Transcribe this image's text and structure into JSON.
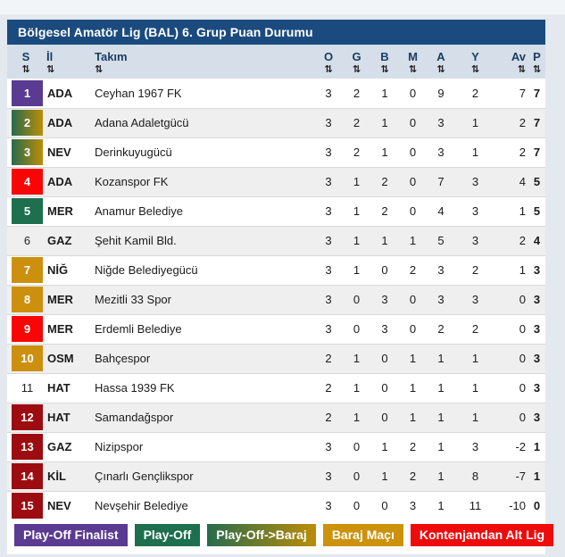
{
  "title": "Bölgesel Amatör Lig (BAL) 6. Grup Puan Durumu",
  "sort_icon": "⇅",
  "columns": [
    {
      "key": "s",
      "label": "S"
    },
    {
      "key": "il",
      "label": "İl"
    },
    {
      "key": "tk",
      "label": "Takım"
    },
    {
      "key": "o",
      "label": "O"
    },
    {
      "key": "g",
      "label": "G"
    },
    {
      "key": "b",
      "label": "B"
    },
    {
      "key": "m",
      "label": "M"
    },
    {
      "key": "a",
      "label": "A"
    },
    {
      "key": "y",
      "label": "Y"
    },
    {
      "key": "av",
      "label": "Av"
    },
    {
      "key": "p",
      "label": "P"
    }
  ],
  "rows": [
    {
      "rank": 1,
      "badge": "purple",
      "il": "ADA",
      "team": "Ceyhan 1967 FK",
      "o": 3,
      "g": 2,
      "b": 1,
      "m": 0,
      "a": 9,
      "y": 2,
      "av": 7,
      "p": 7
    },
    {
      "rank": 2,
      "badge": "grad",
      "il": "ADA",
      "team": "Adana Adaletgücü",
      "o": 3,
      "g": 2,
      "b": 1,
      "m": 0,
      "a": 3,
      "y": 1,
      "av": 2,
      "p": 7
    },
    {
      "rank": 3,
      "badge": "grad",
      "il": "NEV",
      "team": "Derinkuyugücü",
      "o": 3,
      "g": 2,
      "b": 1,
      "m": 0,
      "a": 3,
      "y": 1,
      "av": 2,
      "p": 7
    },
    {
      "rank": 4,
      "badge": "red",
      "il": "ADA",
      "team": "Kozanspor FK",
      "o": 3,
      "g": 1,
      "b": 2,
      "m": 0,
      "a": 7,
      "y": 3,
      "av": 4,
      "p": 5
    },
    {
      "rank": 5,
      "badge": "green",
      "il": "MER",
      "team": "Anamur Belediye",
      "o": 3,
      "g": 1,
      "b": 2,
      "m": 0,
      "a": 4,
      "y": 3,
      "av": 1,
      "p": 5
    },
    {
      "rank": 6,
      "badge": "none",
      "il": "GAZ",
      "team": "Şehit Kamil Bld.",
      "o": 3,
      "g": 1,
      "b": 1,
      "m": 1,
      "a": 5,
      "y": 3,
      "av": 2,
      "p": 4
    },
    {
      "rank": 7,
      "badge": "gold",
      "il": "NİĞ",
      "team": "Niğde Belediyegücü",
      "o": 3,
      "g": 1,
      "b": 0,
      "m": 2,
      "a": 3,
      "y": 2,
      "av": 1,
      "p": 3
    },
    {
      "rank": 8,
      "badge": "gold",
      "il": "MER",
      "team": "Mezitli 33 Spor",
      "o": 3,
      "g": 0,
      "b": 3,
      "m": 0,
      "a": 3,
      "y": 3,
      "av": 0,
      "p": 3
    },
    {
      "rank": 9,
      "badge": "red",
      "il": "MER",
      "team": "Erdemli Belediye",
      "o": 3,
      "g": 0,
      "b": 3,
      "m": 0,
      "a": 2,
      "y": 2,
      "av": 0,
      "p": 3
    },
    {
      "rank": 10,
      "badge": "gold",
      "il": "OSM",
      "team": "Bahçespor",
      "o": 2,
      "g": 1,
      "b": 0,
      "m": 1,
      "a": 1,
      "y": 1,
      "av": 0,
      "p": 3
    },
    {
      "rank": 11,
      "badge": "none",
      "il": "HAT",
      "team": "Hassa 1939 FK",
      "o": 2,
      "g": 1,
      "b": 0,
      "m": 1,
      "a": 1,
      "y": 1,
      "av": 0,
      "p": 3
    },
    {
      "rank": 12,
      "badge": "darkred",
      "il": "HAT",
      "team": "Samandağspor",
      "o": 2,
      "g": 1,
      "b": 0,
      "m": 1,
      "a": 1,
      "y": 1,
      "av": 0,
      "p": 3
    },
    {
      "rank": 13,
      "badge": "darkred",
      "il": "GAZ",
      "team": "Nizipspor",
      "o": 3,
      "g": 0,
      "b": 1,
      "m": 2,
      "a": 1,
      "y": 3,
      "av": -2,
      "p": 1
    },
    {
      "rank": 14,
      "badge": "darkred",
      "il": "KİL",
      "team": "Çınarlı Gençlikspor",
      "o": 3,
      "g": 0,
      "b": 1,
      "m": 2,
      "a": 1,
      "y": 8,
      "av": -7,
      "p": 1
    },
    {
      "rank": 15,
      "badge": "darkred",
      "il": "NEV",
      "team": "Nevşehir Belediye",
      "o": 3,
      "g": 0,
      "b": 0,
      "m": 3,
      "a": 1,
      "y": 11,
      "av": -10,
      "p": 0
    }
  ],
  "legend": [
    {
      "label": "Play-Off Finalist",
      "color_key": "purple",
      "color": "#5b3b91"
    },
    {
      "label": "Play-Off",
      "color_key": "green",
      "color": "#1d6f4e"
    },
    {
      "label": "Play-Off->Baraj",
      "color_key": "grad",
      "color": "#276b4c→#bb8d08"
    },
    {
      "label": "Baraj Maçı",
      "color_key": "gold",
      "color": "#cc920c"
    },
    {
      "label": "Kontenjandan Alt Lig",
      "color_key": "red",
      "color": "#ee0b0b"
    }
  ],
  "colors": {
    "title_bar": "#1b4b7e",
    "header_bg": "#d5dee9",
    "header_text": "#1c3e63",
    "row_alt_bg": "#efefef",
    "page_bg": "#e3e9ef",
    "badge_purple": "#5b3b91",
    "badge_green": "#1d6f4e",
    "badge_gold": "#cc8f0e",
    "badge_red": "#fa0505",
    "badge_darkred": "#9c0c10"
  }
}
